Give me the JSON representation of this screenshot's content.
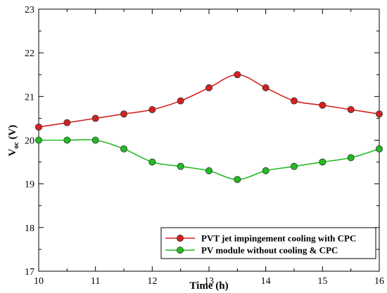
{
  "chart_data": {
    "type": "line",
    "title": "",
    "xlabel": "Time (h)",
    "ylabel_main": "V",
    "ylabel_sub": "oc",
    "ylabel_unit": " (V)",
    "xlim": [
      10,
      16
    ],
    "ylim": [
      17,
      23
    ],
    "xticks": [
      "10",
      "11",
      "12",
      "13",
      "14",
      "15",
      "16"
    ],
    "yticks": [
      "17",
      "18",
      "19",
      "20",
      "21",
      "22",
      "23"
    ],
    "grid": false,
    "legend_position": "bottom-right",
    "x": [
      10,
      10.5,
      11,
      11.5,
      12,
      12.5,
      13,
      13.5,
      14,
      14.5,
      15,
      15.5,
      16
    ],
    "series": [
      {
        "name": "PVT jet impingement cooling with CPC",
        "color": "#d42020",
        "values": [
          20.3,
          20.4,
          20.5,
          20.6,
          20.7,
          20.9,
          21.2,
          21.5,
          21.2,
          20.9,
          20.8,
          20.7,
          20.6
        ]
      },
      {
        "name": "PV module without cooling & CPC",
        "color": "#22bb22",
        "values": [
          20.0,
          20.0,
          20.0,
          19.8,
          19.5,
          19.4,
          19.3,
          19.1,
          19.3,
          19.4,
          19.5,
          19.6,
          19.8
        ]
      }
    ]
  }
}
